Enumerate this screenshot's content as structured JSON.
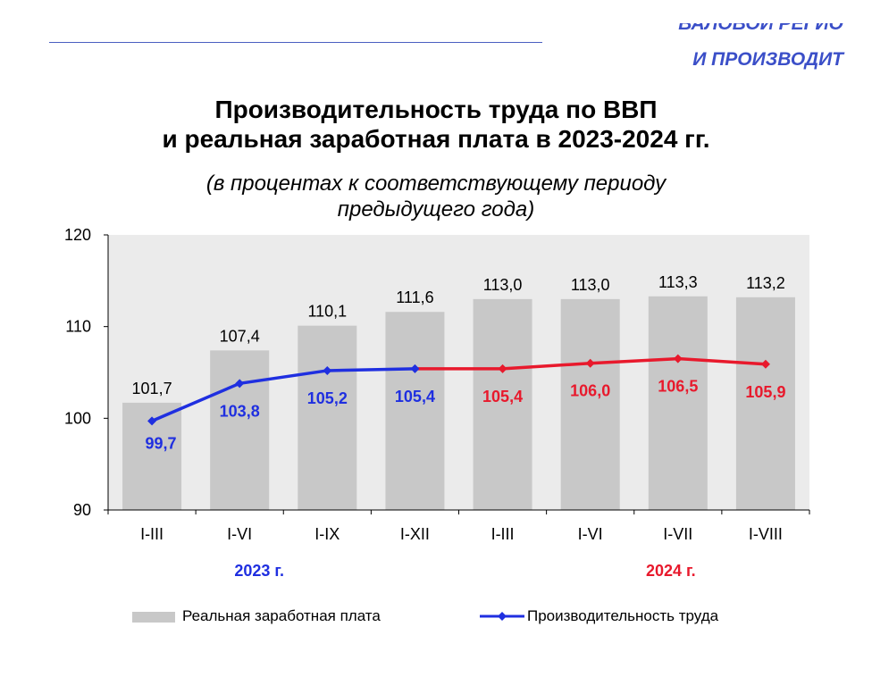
{
  "header": {
    "corner_line1": "ВАЛОВОЙ РЕГИО",
    "corner_line2": "И ПРОИЗВОДИТ"
  },
  "chart_data": {
    "type": "bar",
    "title_line1": "Производительность труда по ВВП",
    "title_line2": "и реальная заработная плата в 2023-2024 гг.",
    "subtitle_line1": "(в процентах к соответствующему периоду",
    "subtitle_line2": "предыдущего года)",
    "categories": [
      "I-III",
      "I-VI",
      "I-IX",
      "I-XII",
      "I-III",
      "I-VI",
      "I-VII",
      "I-VIII"
    ],
    "ylim": [
      90,
      120
    ],
    "yticks": [
      90,
      100,
      110,
      120
    ],
    "grid": false,
    "series": [
      {
        "name": "Реальная заработная плата",
        "kind": "bar",
        "color": "#c8c8c8",
        "values": [
          101.7,
          107.4,
          110.1,
          111.6,
          113.0,
          113.0,
          113.3,
          113.2
        ],
        "labels": [
          "101,7",
          "107,4",
          "110,1",
          "111,6",
          "113,0",
          "113,0",
          "113,3",
          "113,2"
        ]
      },
      {
        "name": "Производительность труда",
        "kind": "line",
        "values": [
          99.7,
          103.8,
          105.2,
          105.4,
          105.4,
          106.0,
          106.5,
          105.9
        ],
        "labels": [
          "99,7",
          "103,8",
          "105,2",
          "105,4",
          "105,4",
          "106,0",
          "106,5",
          "105,9"
        ],
        "color_2023": "#1f2fe0",
        "color_2024": "#e8192c"
      }
    ],
    "year_groups": [
      {
        "label": "2023 г.",
        "color": "#1f2fe0",
        "from": 0,
        "to": 3
      },
      {
        "label": "2024 г.",
        "color": "#e8192c",
        "from": 4,
        "to": 7
      }
    ],
    "plot_background": "#ebebeb",
    "legend_position": "bottom"
  }
}
